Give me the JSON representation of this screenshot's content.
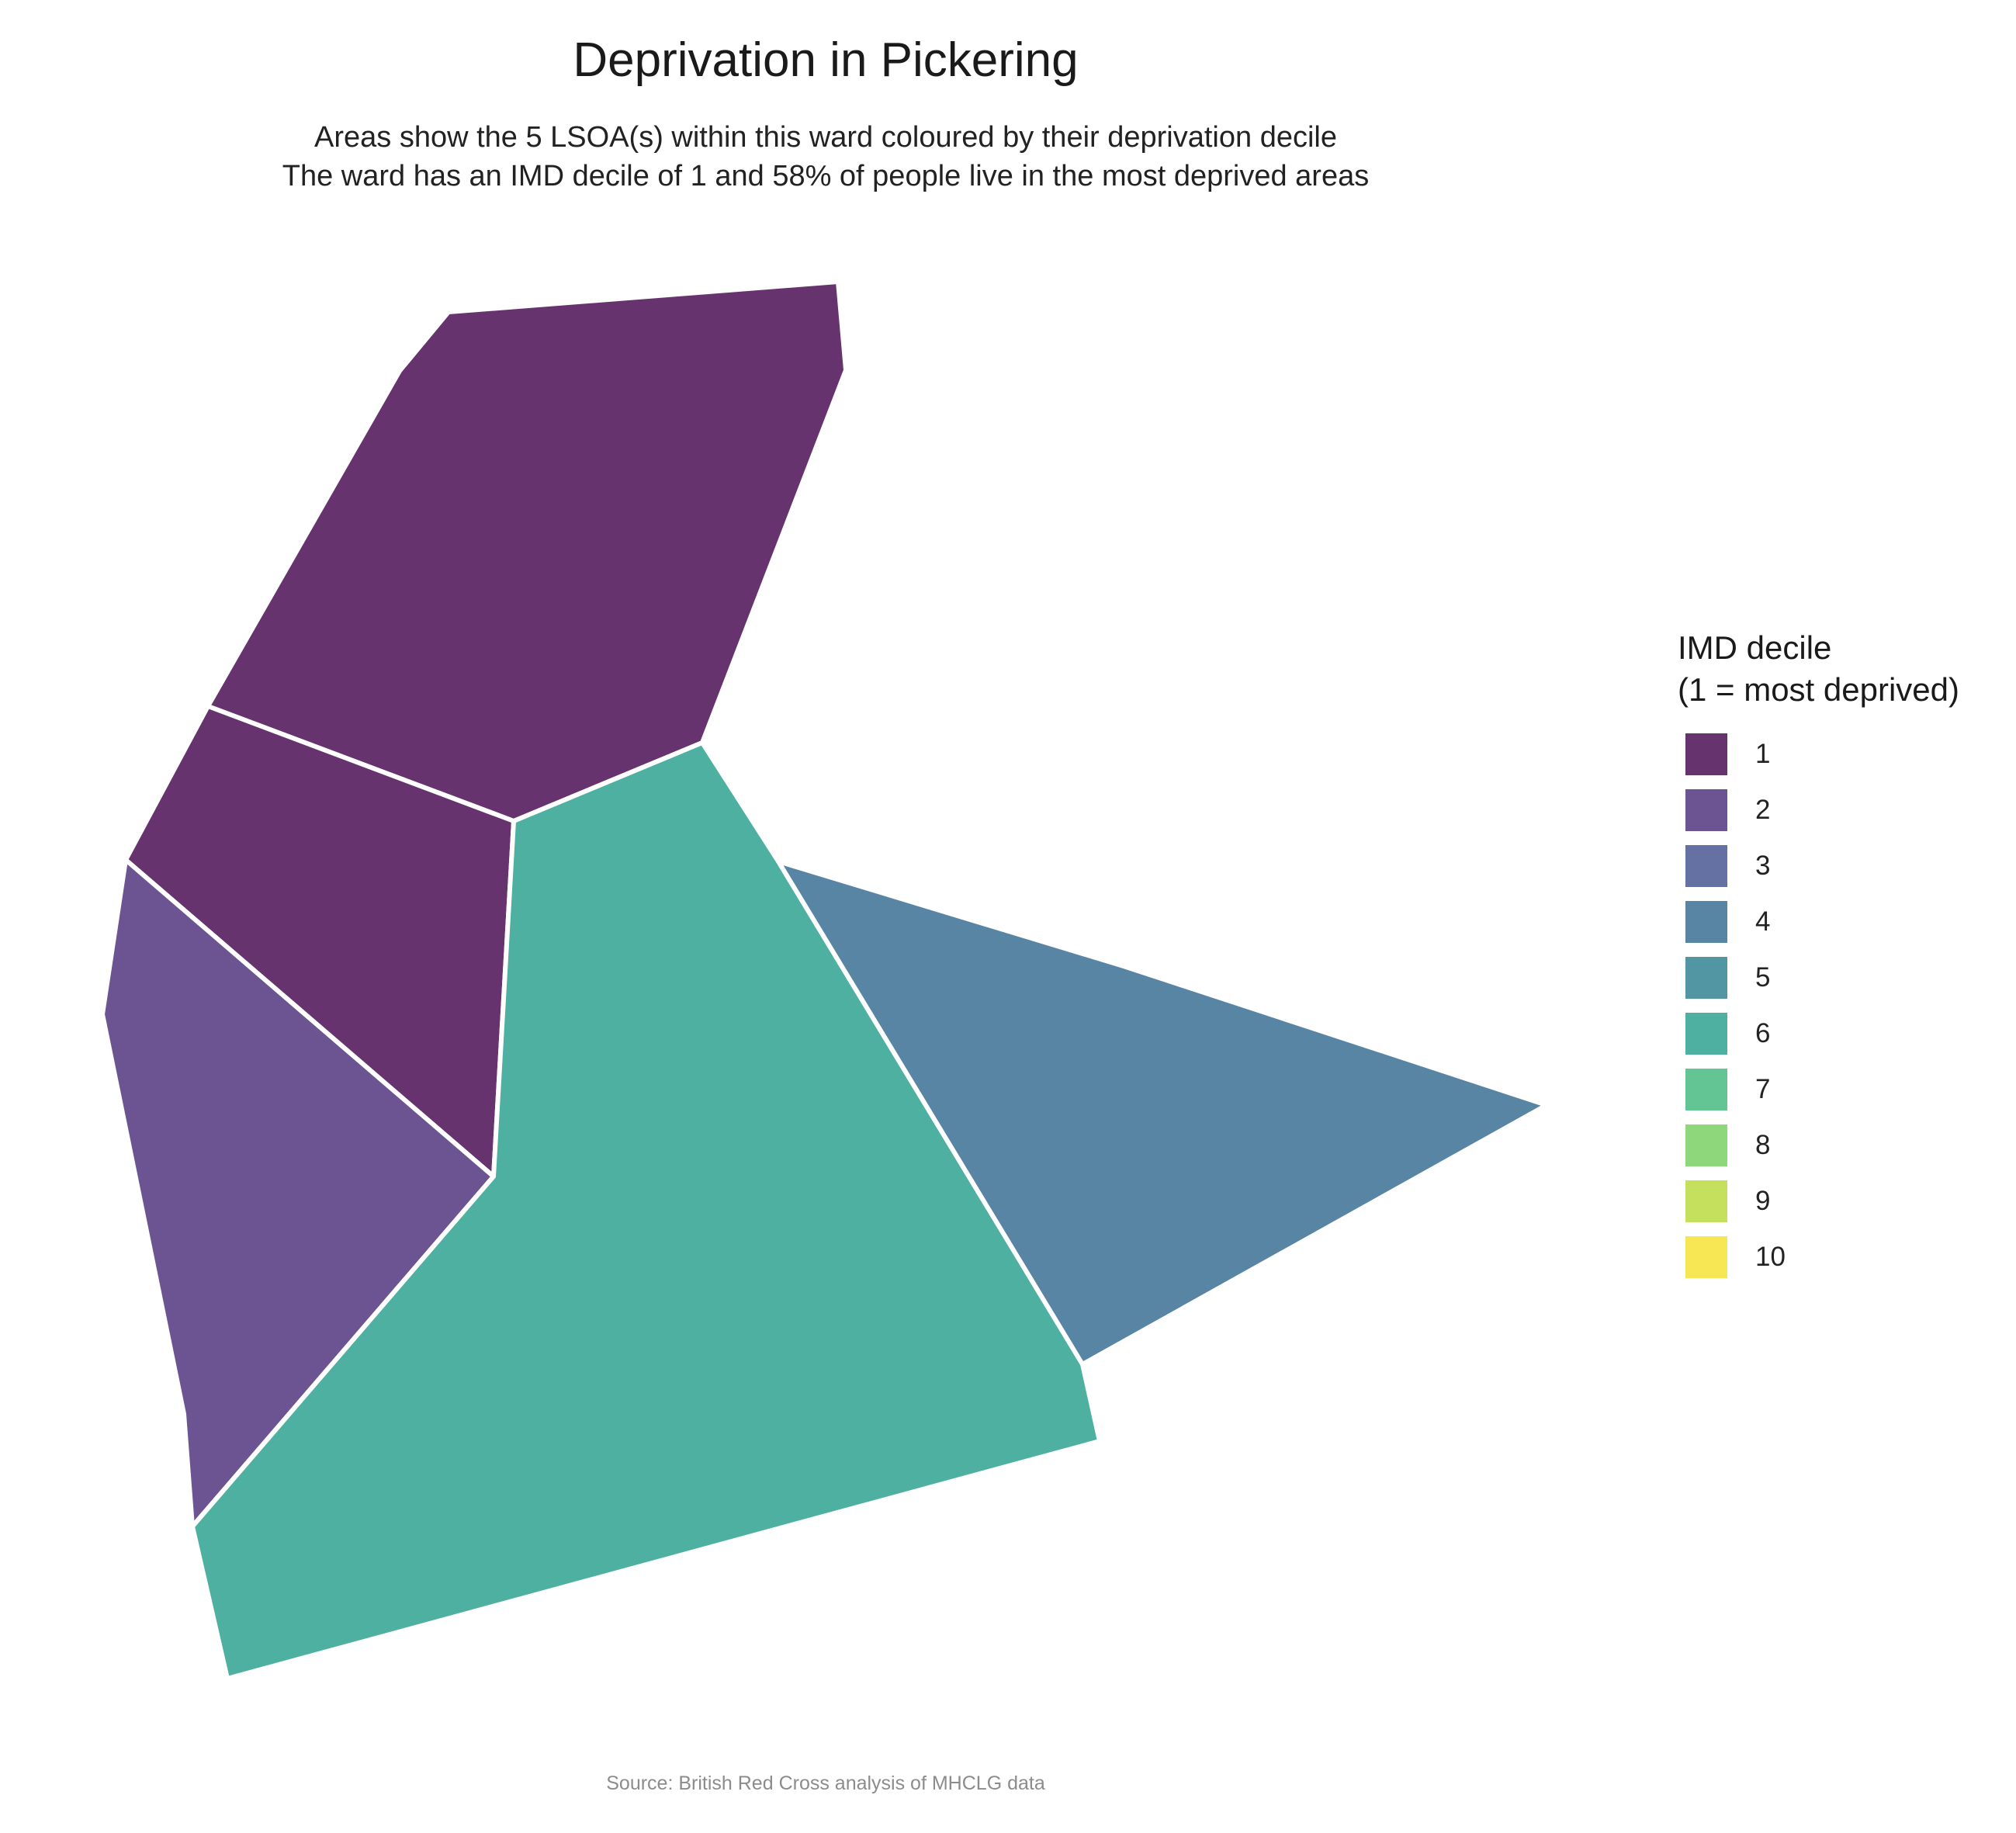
{
  "title": "Deprivation in Pickering",
  "subtitle": {
    "line1": "Areas show the 5 LSOA(s) within this ward coloured by their deprivation decile",
    "line2": "The ward has an IMD decile of 1 and 58% of people live in the most deprived areas"
  },
  "legend": {
    "title_line1": "IMD decile",
    "title_line2": "(1 = most deprived)",
    "items": [
      {
        "label": "1",
        "color": "#67336F"
      },
      {
        "label": "2",
        "color": "#6C5391"
      },
      {
        "label": "3",
        "color": "#6471A2"
      },
      {
        "label": "4",
        "color": "#5985A5"
      },
      {
        "label": "5",
        "color": "#5296A3"
      },
      {
        "label": "6",
        "color": "#4EB0A1"
      },
      {
        "label": "7",
        "color": "#63C593"
      },
      {
        "label": "8",
        "color": "#8ED87B"
      },
      {
        "label": "9",
        "color": "#C4E05C"
      },
      {
        "label": "10",
        "color": "#F8E755"
      }
    ]
  },
  "map": {
    "border_color": "#ffffff",
    "areas": [
      {
        "name": "lsoa-north",
        "decile": 1
      },
      {
        "name": "lsoa-west-central",
        "decile": 1
      },
      {
        "name": "lsoa-west",
        "decile": 2
      },
      {
        "name": "lsoa-south",
        "decile": 6
      },
      {
        "name": "lsoa-east",
        "decile": 4
      }
    ]
  },
  "caption": "Source: British Red Cross analysis of MHCLG data"
}
